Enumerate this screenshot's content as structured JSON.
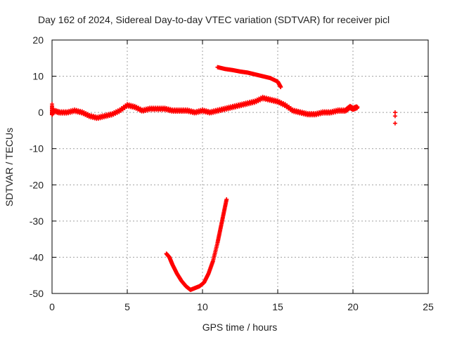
{
  "chart_data": {
    "type": "scatter",
    "title": "Day 162 of 2024, Sidereal Day-to-day VTEC variation (SDTVAR) for receiver picl",
    "xlabel": "GPS time / hours",
    "ylabel": "SDTVAR / TECUs",
    "xlim": [
      0,
      25
    ],
    "ylim": [
      -50,
      20
    ],
    "xticks": [
      "0",
      "5",
      "10",
      "15",
      "20",
      "25"
    ],
    "yticks": [
      "-50",
      "-40",
      "-30",
      "-20",
      "-10",
      "0",
      "10",
      "20"
    ],
    "grid": true,
    "marker": "+",
    "color": "#ff0000",
    "series": [
      {
        "x": [
          0.0,
          0.0,
          0.1,
          0.5,
          1.0,
          1.5,
          2.0,
          2.5,
          3.0,
          3.5,
          4.0,
          4.5,
          5.0,
          5.5,
          6.0,
          6.5,
          7.0,
          7.5,
          8.0,
          8.5,
          9.0,
          9.5,
          10.0,
          10.5,
          11.0,
          11.5,
          12.0,
          12.5,
          13.0,
          13.5,
          14.0,
          14.5,
          15.0,
          15.5,
          16.0,
          16.5,
          17.0,
          17.5,
          18.0,
          18.5,
          19.0,
          19.5,
          19.8,
          20.0,
          20.3
        ],
        "y": [
          2.0,
          -0.5,
          0.5,
          0.0,
          0.0,
          0.5,
          0.0,
          -1.0,
          -1.5,
          -1.0,
          -0.5,
          0.5,
          2.0,
          1.5,
          0.5,
          1.0,
          1.0,
          1.0,
          0.5,
          0.5,
          0.5,
          0.0,
          0.5,
          0.0,
          0.5,
          1.0,
          1.5,
          2.0,
          2.5,
          3.0,
          4.0,
          3.5,
          3.0,
          2.0,
          0.5,
          0.0,
          -0.5,
          -0.5,
          0.0,
          0.0,
          0.5,
          0.5,
          1.5,
          1.0,
          1.5
        ]
      },
      {
        "x": [
          11.0,
          11.5,
          12.0,
          12.5,
          13.0,
          13.5,
          14.0,
          14.5,
          15.0,
          15.2
        ],
        "y": [
          12.5,
          12.0,
          11.7,
          11.3,
          11.0,
          10.5,
          10.0,
          9.5,
          8.5,
          7.0
        ]
      },
      {
        "x": [
          7.6,
          7.8,
          8.0,
          8.3,
          8.6,
          8.9,
          9.2,
          9.5,
          9.8,
          10.1,
          10.4,
          10.7,
          11.0,
          11.2,
          11.4,
          11.6
        ],
        "y": [
          -39.0,
          -40.0,
          -42.0,
          -44.5,
          -46.5,
          -48.0,
          -49.0,
          -48.5,
          -48.0,
          -47.0,
          -44.5,
          -41.0,
          -36.0,
          -32.0,
          -28.0,
          -24.0
        ]
      },
      {
        "x": [
          22.8,
          22.8,
          22.8
        ],
        "y": [
          0.0,
          -1.0,
          -3.0
        ]
      }
    ]
  }
}
